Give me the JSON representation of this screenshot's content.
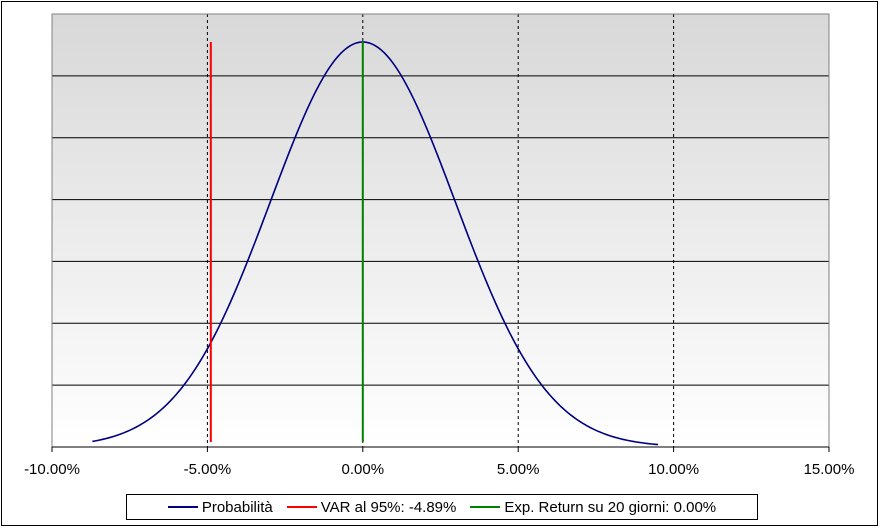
{
  "chart_data": {
    "type": "line",
    "title": "",
    "xlabel": "",
    "ylabel": "",
    "xlim": [
      -10,
      15
    ],
    "x_ticks": [
      "-10.00%",
      "-5.00%",
      "0.00%",
      "5.00%",
      "10.00%",
      "15.00%"
    ],
    "x_tick_values": [
      -10,
      -5,
      0,
      5,
      10,
      15
    ],
    "grid": "vertical dashed at x ticks, horizontal solid lines",
    "legend_position": "bottom",
    "series": [
      {
        "name": "Probabilità",
        "color": "#000080",
        "style": "normal curve, mean 0.00%, std 2.97%",
        "x": [
          -8.7,
          -8.0,
          -7.0,
          -6.0,
          -5.0,
          -4.0,
          -3.0,
          -2.0,
          -1.0,
          0.0,
          1.0,
          2.0,
          3.0,
          4.0,
          5.0,
          6.0,
          7.0,
          8.0,
          9.0,
          9.5
        ],
        "y": [
          0.014,
          0.026,
          0.062,
          0.13,
          0.242,
          0.404,
          0.6,
          0.797,
          0.945,
          1.0,
          0.945,
          0.797,
          0.6,
          0.404,
          0.242,
          0.13,
          0.062,
          0.026,
          0.01,
          0.006
        ]
      },
      {
        "name": "VAR al 95%: -4.89%",
        "color": "#ff0000",
        "x": [
          -4.89,
          -4.89
        ],
        "y": [
          0,
          1.0
        ]
      },
      {
        "name": "Exp. Return su 20 giorni: 0.00%",
        "color": "#008000",
        "x": [
          0.0,
          0.0
        ],
        "y": [
          0,
          1.0
        ]
      }
    ]
  }
}
